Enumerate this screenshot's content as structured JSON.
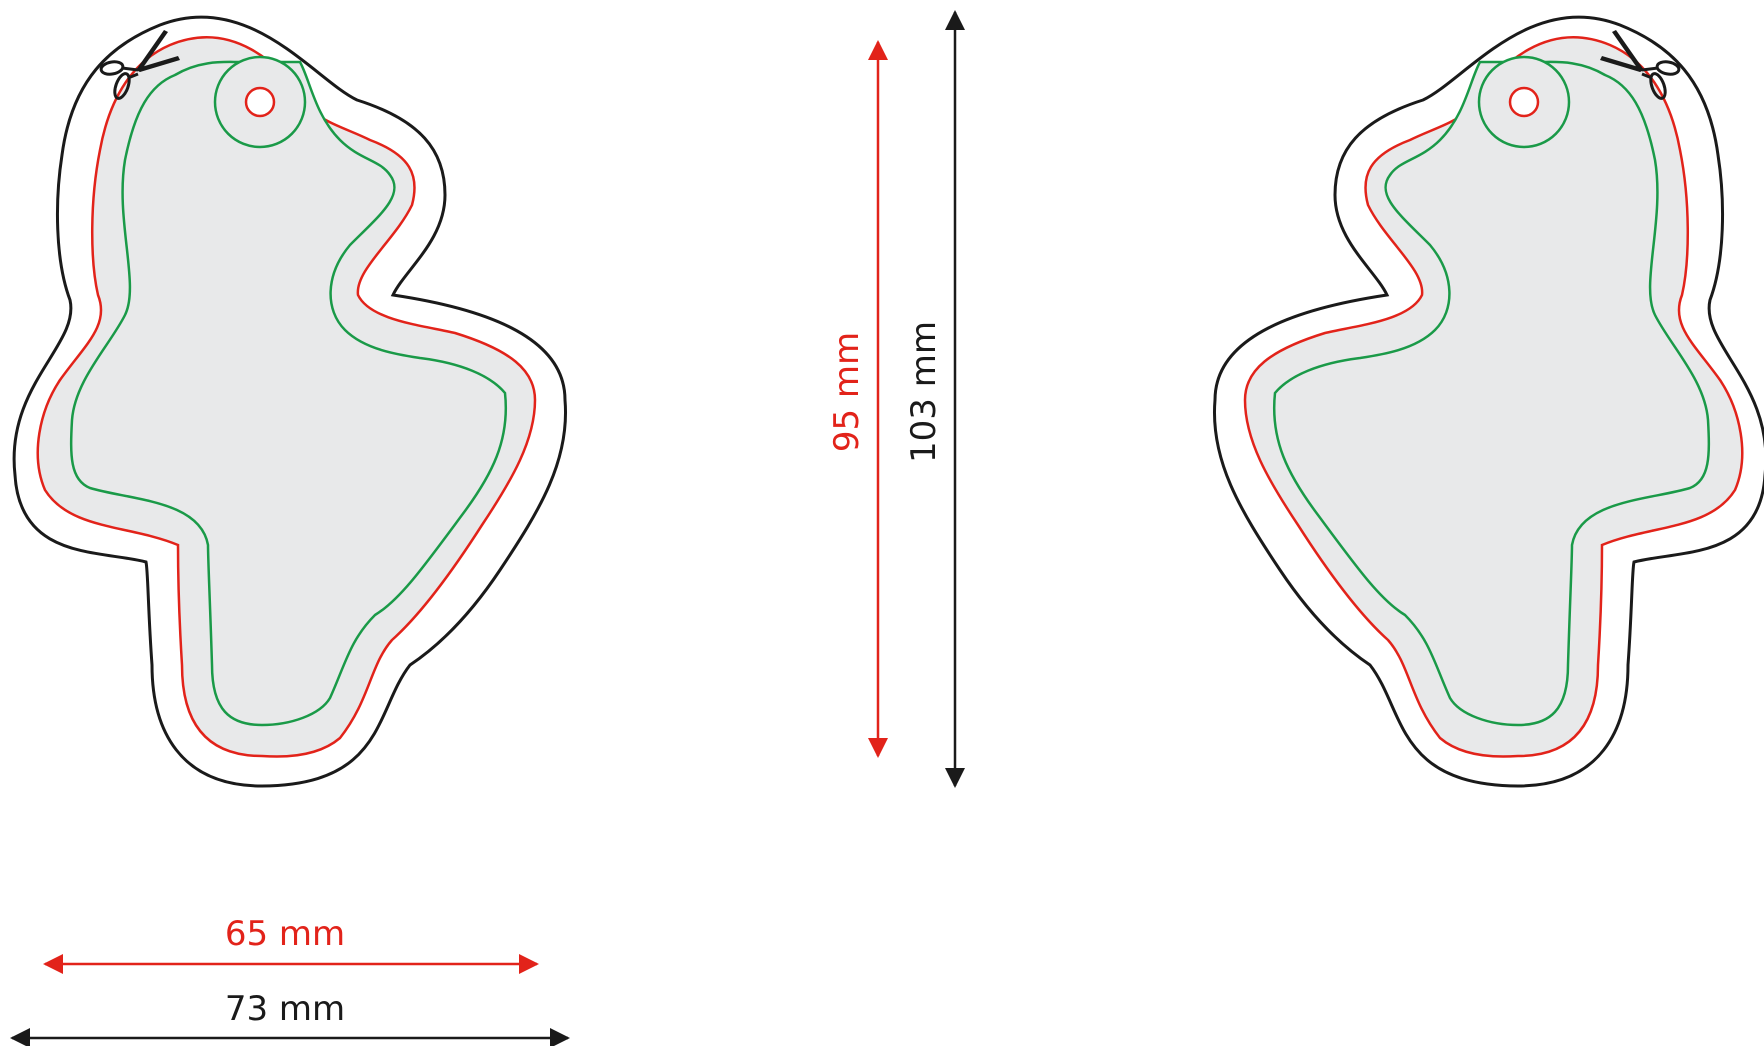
{
  "dimensions": {
    "height_inner": "95 mm",
    "height_outer": "103 mm",
    "width_inner": "65 mm",
    "width_outer": "73 mm"
  },
  "colors": {
    "cut_line": "#1a1a1a",
    "bleed_line": "#e2231a",
    "safe_line": "#1a9a48",
    "fill": "#e8e9ea",
    "inner_dimension": "#e2231a",
    "outer_dimension": "#1a1a1a"
  },
  "icons": [
    "scissors-icon",
    "scissors-icon"
  ]
}
